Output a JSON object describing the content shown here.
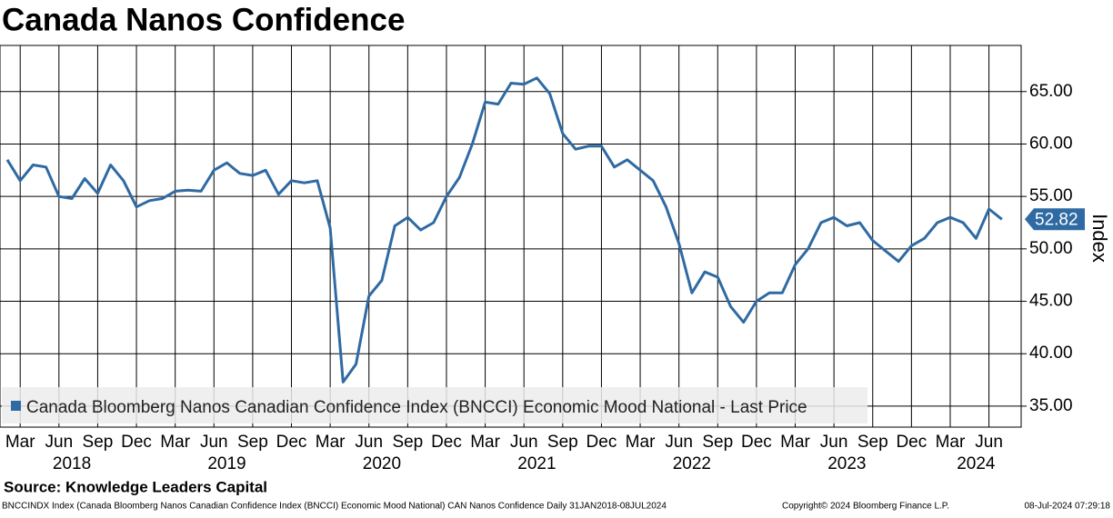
{
  "chart_data": {
    "type": "line",
    "title": "Canada Nanos Confidence",
    "y_axis_label": "Index",
    "x": [
      "2018-02",
      "2018-03",
      "2018-04",
      "2018-05",
      "2018-06",
      "2018-07",
      "2018-08",
      "2018-09",
      "2018-10",
      "2018-11",
      "2018-12",
      "2019-01",
      "2019-02",
      "2019-03",
      "2019-04",
      "2019-05",
      "2019-06",
      "2019-07",
      "2019-08",
      "2019-09",
      "2019-10",
      "2019-11",
      "2019-12",
      "2020-01",
      "2020-02",
      "2020-03",
      "2020-04",
      "2020-05",
      "2020-06",
      "2020-07",
      "2020-08",
      "2020-09",
      "2020-10",
      "2020-11",
      "2020-12",
      "2021-01",
      "2021-02",
      "2021-03",
      "2021-04",
      "2021-05",
      "2021-06",
      "2021-07",
      "2021-08",
      "2021-09",
      "2021-10",
      "2021-11",
      "2021-12",
      "2022-01",
      "2022-02",
      "2022-03",
      "2022-04",
      "2022-05",
      "2022-06",
      "2022-07",
      "2022-08",
      "2022-09",
      "2022-10",
      "2022-11",
      "2022-12",
      "2023-01",
      "2023-02",
      "2023-03",
      "2023-04",
      "2023-05",
      "2023-06",
      "2023-07",
      "2023-08",
      "2023-09",
      "2023-10",
      "2023-11",
      "2023-12",
      "2024-01",
      "2024-02",
      "2024-03",
      "2024-04",
      "2024-05",
      "2024-06",
      "2024-07"
    ],
    "series": [
      {
        "name": "Canada Bloomberg Nanos Canadian Confidence Index (BNCCI) Economic Mood National - Last Price",
        "color": "#2f6aa3",
        "values": [
          58.5,
          56.5,
          58,
          57.8,
          55,
          54.8,
          56.7,
          55.3,
          58,
          56.5,
          54,
          54.6,
          54.8,
          55.5,
          55.6,
          55.5,
          57.5,
          58.2,
          57.2,
          57,
          57.5,
          55.2,
          56.5,
          56.3,
          56.5,
          52,
          37.3,
          39,
          45.5,
          47,
          52.2,
          53,
          51.8,
          52.5,
          55,
          56.8,
          60,
          64,
          63.8,
          65.8,
          65.7,
          66.3,
          64.8,
          61,
          59.5,
          59.8,
          59.8,
          57.8,
          58.5,
          57.5,
          56.5,
          54,
          50.5,
          45.8,
          47.8,
          47.3,
          44.5,
          43,
          45,
          45.8,
          45.8,
          48.5,
          50,
          52.5,
          53,
          52.2,
          52.5,
          50.8,
          49.8,
          48.8,
          50.3,
          51,
          52.5,
          53,
          52.5,
          51,
          53.8,
          52.82
        ]
      }
    ],
    "last_price": 52.82,
    "xlim": [
      "2018-02",
      "2024-08"
    ],
    "ylim": [
      33,
      69.4
    ],
    "yticks": [
      {
        "value": 35,
        "label": "35.00"
      },
      {
        "value": 40,
        "label": "40.00"
      },
      {
        "value": 45,
        "label": "45.00"
      },
      {
        "value": 50,
        "label": "50.00"
      },
      {
        "value": 55,
        "label": "55.00"
      },
      {
        "value": 60,
        "label": "60.00"
      },
      {
        "value": 65,
        "label": "65.00"
      }
    ],
    "xticks": [
      {
        "value": "2018-03",
        "label": "Mar"
      },
      {
        "value": "2018-06",
        "label": "Jun"
      },
      {
        "value": "2018-09",
        "label": "Sep"
      },
      {
        "value": "2018-12",
        "label": "Dec"
      },
      {
        "value": "2019-03",
        "label": "Mar"
      },
      {
        "value": "2019-06",
        "label": "Jun"
      },
      {
        "value": "2019-09",
        "label": "Sep"
      },
      {
        "value": "2019-12",
        "label": "Dec"
      },
      {
        "value": "2020-03",
        "label": "Mar"
      },
      {
        "value": "2020-06",
        "label": "Jun"
      },
      {
        "value": "2020-09",
        "label": "Sep"
      },
      {
        "value": "2020-12",
        "label": "Dec"
      },
      {
        "value": "2021-03",
        "label": "Mar"
      },
      {
        "value": "2021-06",
        "label": "Jun"
      },
      {
        "value": "2021-09",
        "label": "Sep"
      },
      {
        "value": "2021-12",
        "label": "Dec"
      },
      {
        "value": "2022-03",
        "label": "Mar"
      },
      {
        "value": "2022-06",
        "label": "Jun"
      },
      {
        "value": "2022-09",
        "label": "Sep"
      },
      {
        "value": "2022-12",
        "label": "Dec"
      },
      {
        "value": "2023-03",
        "label": "Mar"
      },
      {
        "value": "2023-06",
        "label": "Jun"
      },
      {
        "value": "2023-09",
        "label": "Sep"
      },
      {
        "value": "2023-12",
        "label": "Dec"
      },
      {
        "value": "2024-03",
        "label": "Mar"
      },
      {
        "value": "2024-06",
        "label": "Jun"
      }
    ],
    "year_labels": [
      {
        "value": "2018-07",
        "label": "2018"
      },
      {
        "value": "2019-07",
        "label": "2019"
      },
      {
        "value": "2020-07",
        "label": "2020"
      },
      {
        "value": "2021-07",
        "label": "2021"
      },
      {
        "value": "2022-07",
        "label": "2022"
      },
      {
        "value": "2023-07",
        "label": "2023"
      },
      {
        "value": "2024-05",
        "label": "2024"
      }
    ],
    "grid": true,
    "legend": "lower left",
    "source": "Source: Knowledge Leaders Capital",
    "footer_left": "BNCCINDX Index (Canada Bloomberg Nanos Canadian Confidence Index (BNCCI) Economic Mood National) CAN Nanos Confidence  Daily 31JAN2018-08JUL2024",
    "footer_center": "Copyright© 2024 Bloomberg Finance L.P.",
    "footer_right": "08-Jul-2024 07:29:18"
  }
}
